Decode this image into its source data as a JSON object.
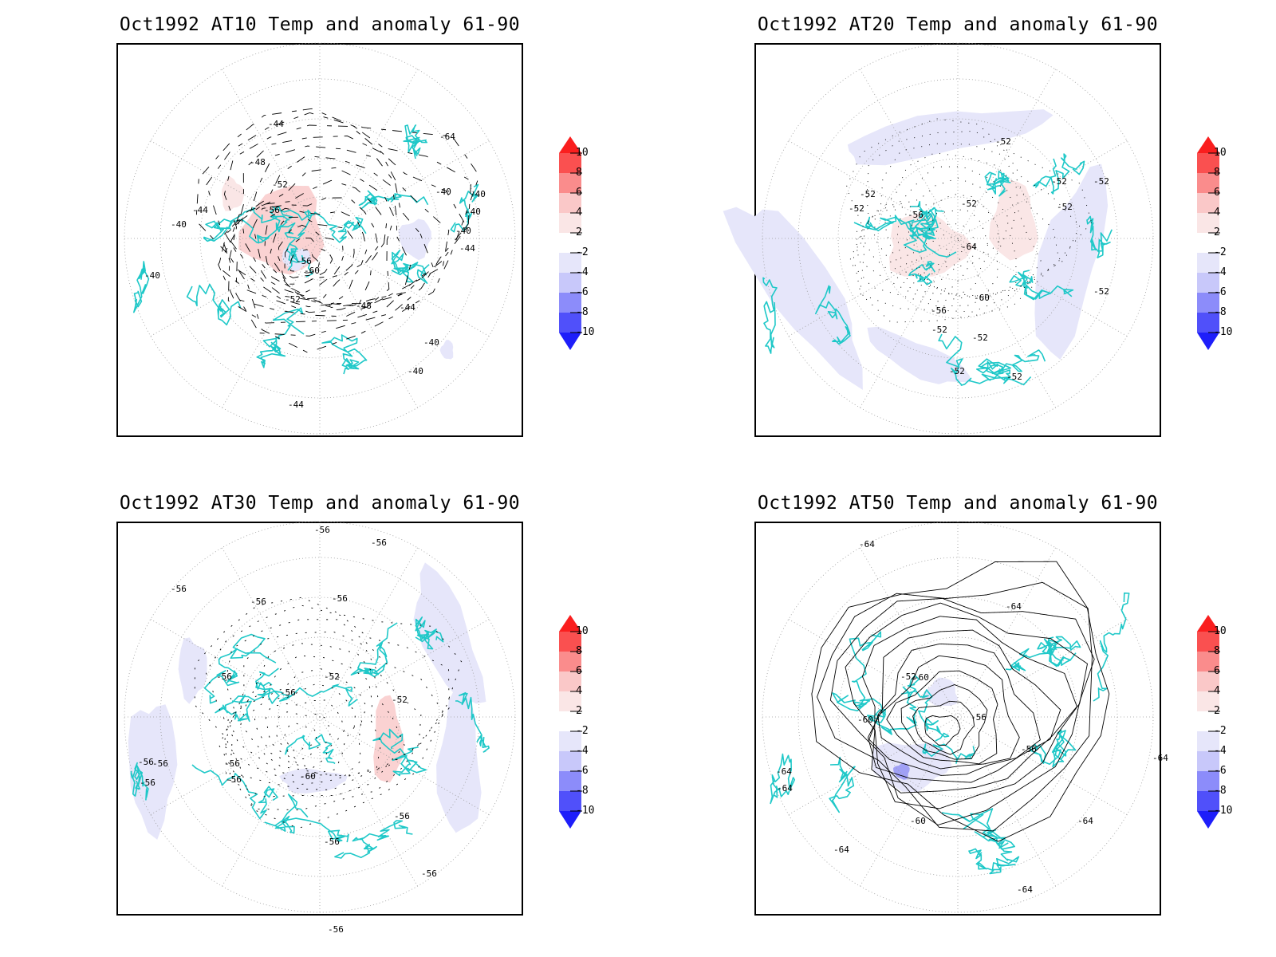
{
  "panels": [
    {
      "title": "Oct1992 AT10 Temp and anomaly 61-90",
      "contour_labels": [
        "-44",
        "-48",
        "-52",
        "-56",
        "-60",
        "-64",
        "-40",
        "-44",
        "-40",
        "-44",
        "-48",
        "-52",
        "-56",
        "-40",
        "-40",
        "-40",
        "-44",
        "-44",
        "-40",
        "-40",
        "-40"
      ]
    },
    {
      "title": "Oct1992 AT20 Temp and anomaly 61-90",
      "contour_labels": [
        "-52",
        "-52",
        "-52",
        "-56",
        "-52",
        "-64",
        "-60",
        "-56",
        "-52",
        "-52",
        "-52",
        "-52",
        "-52",
        "-52",
        "-52",
        "-52"
      ]
    },
    {
      "title": "Oct1992 AT30 Temp and anomaly 61-90",
      "contour_labels": [
        "-56",
        "-56",
        "-56",
        "-56",
        "-56",
        "-56",
        "-52",
        "-56",
        "-52",
        "-60",
        "-56",
        "-56",
        "-56",
        "-56",
        "-56",
        "-56",
        "-56",
        "-56",
        "-56"
      ]
    },
    {
      "title": "Oct1992 AT50 Temp and anomaly 61-90",
      "contour_labels": [
        "-64",
        "-64",
        "-52",
        "-60",
        "-56",
        "-60",
        "-56",
        "-60",
        "-64",
        "-64",
        "-64",
        "-64",
        "-64",
        "-64"
      ]
    }
  ],
  "colorbar": {
    "labels": [
      "10",
      "8",
      "6",
      "4",
      "2",
      "-2",
      "-4",
      "-6",
      "-8",
      "-10"
    ],
    "colors": [
      "#fa1e1e",
      "#fa5050",
      "#fa8c8c",
      "#fac8c8",
      "#fae6e6",
      "#ffffff",
      "#e6e6fa",
      "#c8c8fa",
      "#8c8cfa",
      "#5050fa",
      "#1e1efa"
    ]
  },
  "colors": {
    "coast": "#1fc8c8",
    "contour": "#000000",
    "grid": "#9a9a9a",
    "frame": "#000000"
  }
}
